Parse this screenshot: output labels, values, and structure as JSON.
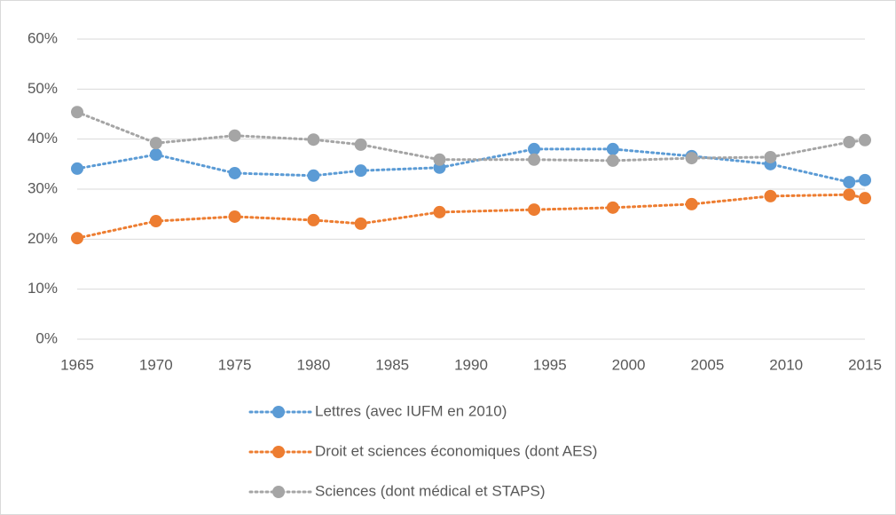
{
  "chart_data": {
    "type": "line",
    "x": [
      1965,
      1970,
      1975,
      1980,
      1983,
      1988,
      1994,
      1999,
      2004,
      2009,
      2014,
      2015
    ],
    "series": [
      {
        "name": "Lettres (avec IUFM en 2010)",
        "color": "#5b9bd5",
        "values": [
          34.1,
          36.9,
          33.2,
          32.7,
          33.7,
          34.3,
          38.0,
          38.0,
          36.6,
          35.0,
          31.4,
          31.8
        ]
      },
      {
        "name": "Droit et sciences économiques (dont AES)",
        "color": "#ed7d31",
        "values": [
          20.2,
          23.6,
          24.5,
          23.8,
          23.1,
          25.4,
          25.9,
          26.3,
          27.0,
          28.6,
          28.9,
          28.2
        ]
      },
      {
        "name": "Sciences (dont médical et STAPS)",
        "color": "#a5a5a5",
        "values": [
          45.4,
          39.2,
          40.7,
          39.9,
          38.9,
          35.9,
          35.9,
          35.7,
          36.2,
          36.4,
          39.4,
          39.8
        ]
      }
    ],
    "xlim": [
      1965,
      2015
    ],
    "xticks": [
      1965,
      1970,
      1975,
      1980,
      1985,
      1990,
      1995,
      2000,
      2005,
      2010,
      2015
    ],
    "ylim": [
      0,
      60
    ],
    "yticks": [
      {
        "value": 0,
        "label": "0%"
      },
      {
        "value": 10,
        "label": "10%"
      },
      {
        "value": 20,
        "label": "20%"
      },
      {
        "value": 30,
        "label": "30%"
      },
      {
        "value": 40,
        "label": "40%"
      },
      {
        "value": 50,
        "label": "50%"
      },
      {
        "value": 60,
        "label": "60%"
      }
    ],
    "grid": true,
    "legend": "bottom"
  }
}
